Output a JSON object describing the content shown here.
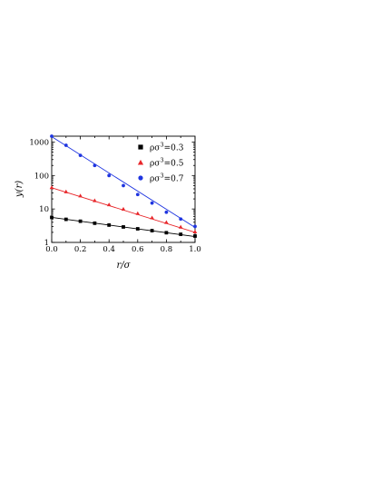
{
  "chart_data": {
    "type": "scatter",
    "title": "",
    "xlabel": "r/σ",
    "ylabel": "y(r)",
    "xlim": [
      0.0,
      1.0
    ],
    "ylim": [
      1,
      1500
    ],
    "y_scale": "log",
    "x_ticks": [
      "0.0",
      "0.2",
      "0.4",
      "0.6",
      "0.8",
      "1.0"
    ],
    "y_ticks": [
      "1",
      "10",
      "100",
      "1000"
    ],
    "legend_position": "top-right",
    "series": [
      {
        "name": "ρσ3=0.3",
        "name_parts": [
          "ρσ",
          "3",
          "=0.3"
        ],
        "color": "#000000",
        "marker": "square",
        "x": [
          0.0,
          0.1,
          0.2,
          0.3,
          0.4,
          0.5,
          0.6,
          0.7,
          0.8,
          0.9,
          1.0
        ],
        "values": [
          5.6,
          4.9,
          4.3,
          3.75,
          3.3,
          2.9,
          2.55,
          2.25,
          1.95,
          1.75,
          1.55
        ],
        "fit": [
          5.6,
          1.5
        ]
      },
      {
        "name": "ρσ3=0.5",
        "name_parts": [
          "ρσ",
          "3",
          "=0.5"
        ],
        "color": "#e8262a",
        "marker": "triangle",
        "x": [
          0.0,
          0.1,
          0.2,
          0.3,
          0.4,
          0.5,
          0.6,
          0.7,
          0.8,
          0.9,
          1.0
        ],
        "values": [
          44,
          33,
          25,
          18,
          13.5,
          10,
          7.4,
          5.5,
          4.0,
          2.9,
          2.1
        ],
        "fit": [
          43,
          2.0
        ]
      },
      {
        "name": "ρσ3=0.7",
        "name_parts": [
          "ρσ",
          "3",
          "=0.7"
        ],
        "color": "#1f35e0",
        "marker": "circle",
        "x": [
          0.0,
          0.1,
          0.2,
          0.3,
          0.4,
          0.5,
          0.6,
          0.7,
          0.8,
          0.9,
          1.0
        ],
        "values": [
          1500,
          800,
          400,
          200,
          100,
          50,
          27,
          15,
          8,
          5,
          3
        ],
        "fit": [
          1450,
          2.8
        ]
      }
    ]
  }
}
